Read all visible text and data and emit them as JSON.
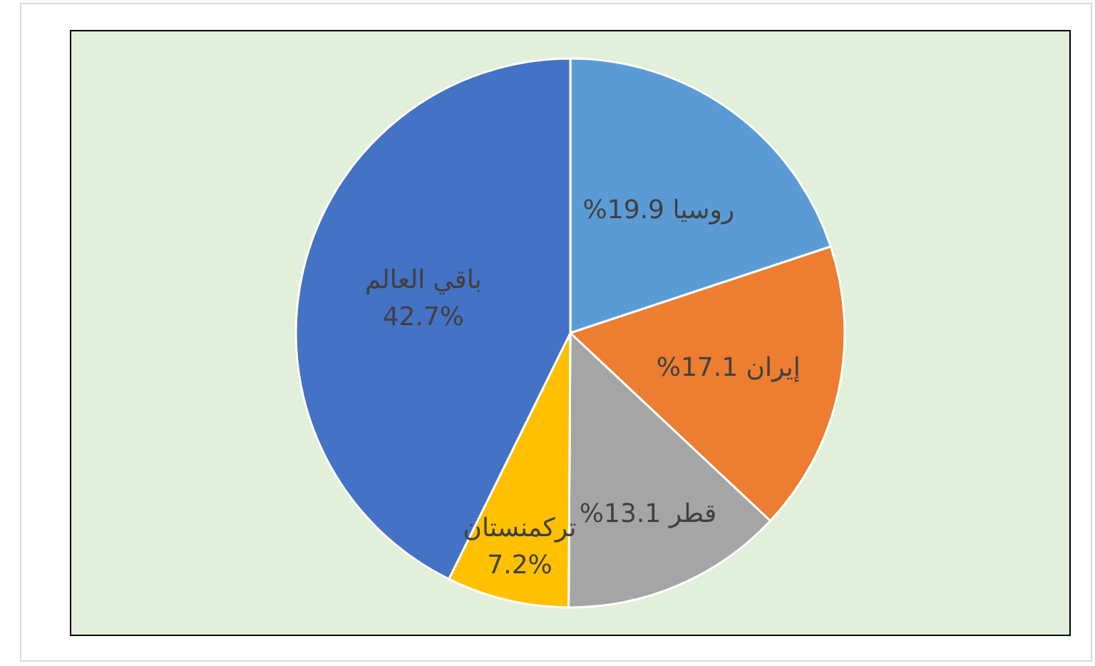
{
  "chart_data": {
    "type": "pie",
    "categories": [
      "روسيا",
      "إيران",
      "قطر",
      "تركمنستان",
      "باقي العالم"
    ],
    "values": [
      19.9,
      17.1,
      13.1,
      7.2,
      42.7
    ],
    "colors": [
      "#5b9bd5",
      "#ed7d31",
      "#a5a5a5",
      "#ffc000",
      "#4472c4"
    ],
    "value_labels": [
      "19.9%",
      "17.1%",
      "13.1%",
      "7.2%",
      "42.7%"
    ]
  }
}
